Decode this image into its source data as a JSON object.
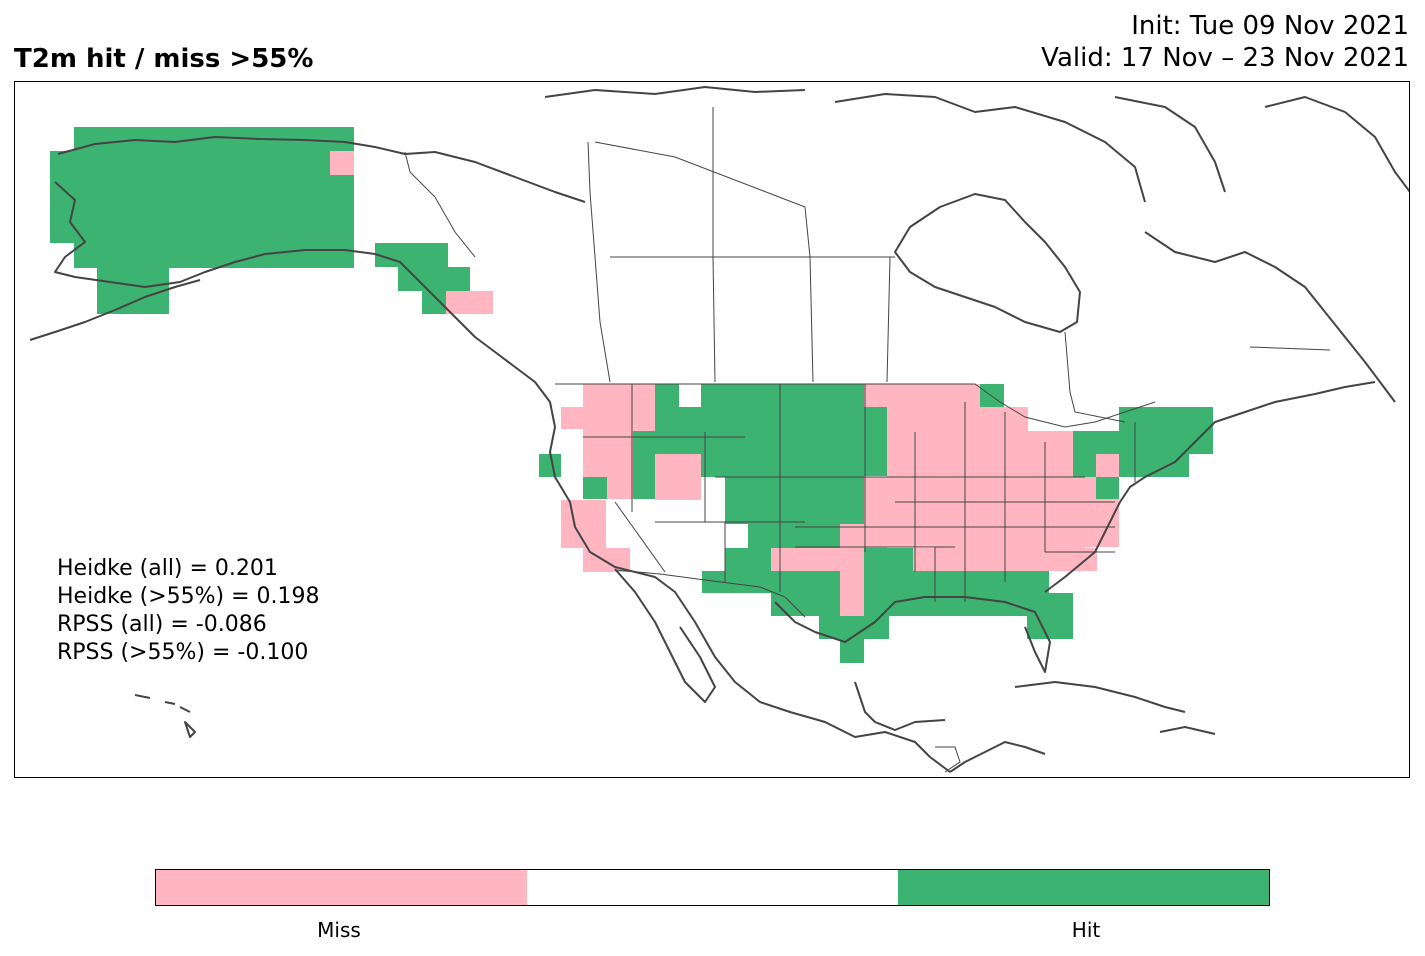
{
  "header": {
    "title": "T2m hit / miss  >55%",
    "init": "Init: Tue 09 Nov 2021",
    "valid": "Valid: 17 Nov – 23 Nov 2021"
  },
  "stats": [
    "Heidke (all) = 0.201",
    "Heidke (>55%) = 0.198",
    "RPSS (all) = -0.086",
    "RPSS (>55%) = -0.100"
  ],
  "colorbar": {
    "labels": [
      "Miss",
      "Hit"
    ],
    "colors": {
      "miss": "#ffb6c1",
      "neutral": "#ffffff",
      "hit": "#3cb371"
    }
  },
  "map": {
    "region": "North America",
    "hit_color": "#3cb371",
    "miss_color": "#ffb6c1",
    "coast_color": "#444444"
  }
}
